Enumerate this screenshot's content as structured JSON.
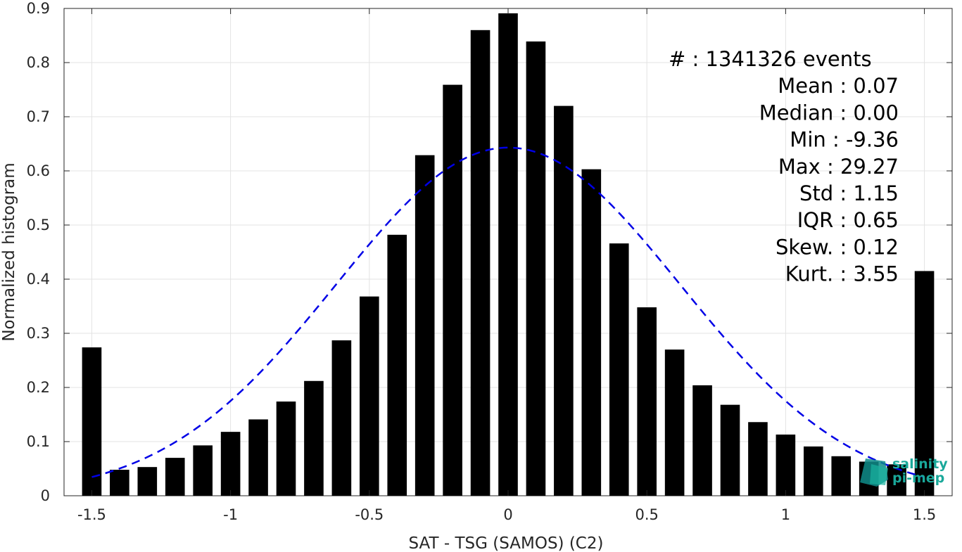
{
  "chart_data": {
    "type": "bar",
    "xlabel": "SAT - TSG (SAMOS) (C2)",
    "ylabel": "Normalized histogram",
    "xlim": [
      -1.6,
      1.6
    ],
    "ylim": [
      0,
      0.9
    ],
    "grid": true,
    "x_ticks": [
      -1.5,
      -1,
      -0.5,
      0,
      0.5,
      1,
      1.5
    ],
    "x_tick_labels": [
      "-1.5",
      "-1",
      "-0.5",
      "0",
      "0.5",
      "1",
      "1.5"
    ],
    "y_ticks": [
      0,
      0.1,
      0.2,
      0.3,
      0.4,
      0.5,
      0.6,
      0.7,
      0.8,
      0.9
    ],
    "y_tick_labels": [
      "0",
      "0.1",
      "0.2",
      "0.3",
      "0.4",
      "0.5",
      "0.6",
      "0.7",
      "0.8",
      "0.9"
    ],
    "bar_width": 0.07,
    "bars": {
      "x": [
        -1.5,
        -1.4,
        -1.3,
        -1.2,
        -1.1,
        -1.0,
        -0.9,
        -0.8,
        -0.7,
        -0.6,
        -0.5,
        -0.4,
        -0.3,
        -0.2,
        -0.1,
        0.0,
        0.1,
        0.2,
        0.3,
        0.4,
        0.5,
        0.6,
        0.7,
        0.8,
        0.9,
        1.0,
        1.1,
        1.2,
        1.3,
        1.4,
        1.5
      ],
      "values": [
        0.274,
        0.048,
        0.053,
        0.07,
        0.093,
        0.118,
        0.141,
        0.174,
        0.212,
        0.287,
        0.368,
        0.482,
        0.629,
        0.759,
        0.86,
        0.891,
        0.839,
        0.72,
        0.603,
        0.466,
        0.348,
        0.27,
        0.204,
        0.168,
        0.136,
        0.113,
        0.091,
        0.073,
        0.063,
        0.058,
        0.415
      ],
      "color": "#000000"
    },
    "fit_curve": {
      "style": "dashed",
      "color": "#0000e6",
      "mean": 0.0,
      "sigma": 0.62,
      "peak": 0.643,
      "x_range": [
        -1.5,
        1.5
      ]
    },
    "stats": [
      {
        "label": "#  ",
        "value": "1341326 events",
        "sep": ": "
      },
      {
        "label": "Mean ",
        "value": "0.07",
        "sep": ": "
      },
      {
        "label": "Median ",
        "value": "0.00",
        "sep": ": "
      },
      {
        "label": "Min ",
        "value": "-9.36",
        "sep": ": "
      },
      {
        "label": "Max ",
        "value": "29.27",
        "sep": ": "
      },
      {
        "label": "Std ",
        "value": "1.15",
        "sep": ": "
      },
      {
        "label": "IQR ",
        "value": "0.65",
        "sep": ": "
      },
      {
        "label": "Skew. ",
        "value": "0.12",
        "sep": ": "
      },
      {
        "label": "Kurt. ",
        "value": "3.55",
        "sep": ": "
      }
    ],
    "watermark": {
      "line1": "salinity",
      "line2": "pi-mep",
      "color": "#1aa89a"
    }
  }
}
